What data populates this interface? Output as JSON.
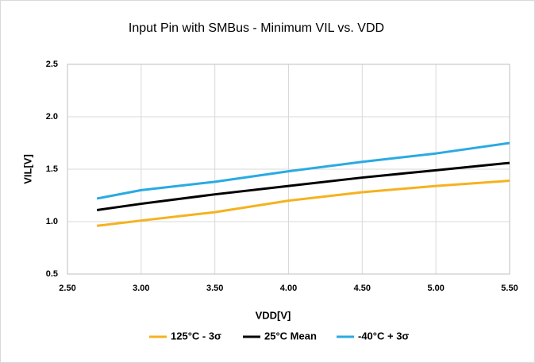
{
  "chart_data": {
    "type": "line",
    "title": "Input Pin with SMBus - Minimum VIL vs. VDD",
    "x_label": "VDD[V]",
    "y_label": "VIL[V]",
    "x": [
      2.7,
      3.0,
      3.5,
      4.0,
      4.5,
      5.0,
      5.5
    ],
    "series": [
      {
        "name": "125°C - 3σ",
        "color": "#f5b21f",
        "values": [
          0.96,
          1.01,
          1.09,
          1.2,
          1.28,
          1.34,
          1.39
        ]
      },
      {
        "name": "25°C Mean",
        "color": "#000000",
        "values": [
          1.11,
          1.17,
          1.26,
          1.34,
          1.42,
          1.49,
          1.56
        ]
      },
      {
        "name": "-40°C + 3σ",
        "color": "#29aae2",
        "values": [
          1.22,
          1.3,
          1.38,
          1.48,
          1.57,
          1.65,
          1.75
        ]
      }
    ],
    "xlim": [
      2.5,
      5.5
    ],
    "xticks": [
      {
        "value": 2.5,
        "label": "2.50"
      },
      {
        "value": 3,
        "label": "3.00"
      },
      {
        "value": 3.5,
        "label": "3.50"
      },
      {
        "value": 4,
        "label": "4.00"
      },
      {
        "value": 4.5,
        "label": "4.50"
      },
      {
        "value": 5,
        "label": "5.00"
      },
      {
        "value": 5.5,
        "label": "5.50"
      }
    ],
    "ylim": [
      0.5,
      2.5
    ],
    "yticks": [
      0.5,
      {
        "value": 1,
        "label": "1.0"
      },
      1.5,
      {
        "value": 2,
        "label": "2.0"
      },
      2.5
    ],
    "grid": true,
    "legend": "bottom"
  }
}
